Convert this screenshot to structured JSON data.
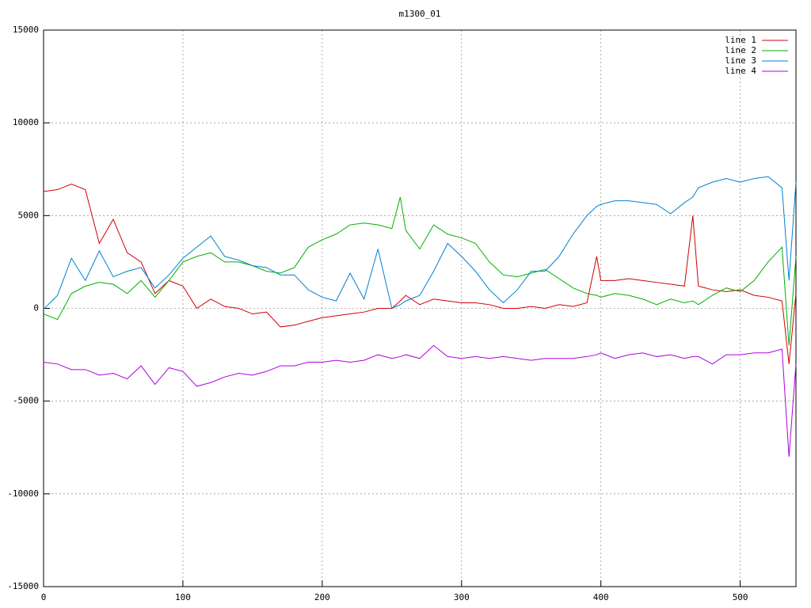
{
  "chart_data": {
    "type": "line",
    "title": "m1300_01",
    "x": [
      0,
      10,
      20,
      30,
      40,
      50,
      60,
      70,
      80,
      90,
      100,
      110,
      120,
      130,
      140,
      150,
      160,
      170,
      180,
      190,
      200,
      210,
      220,
      230,
      240,
      250,
      256,
      260,
      270,
      280,
      290,
      300,
      310,
      320,
      330,
      340,
      350,
      360,
      370,
      380,
      390,
      397,
      400,
      410,
      420,
      430,
      440,
      450,
      460,
      466,
      470,
      480,
      490,
      500,
      510,
      520,
      530,
      535,
      540
    ],
    "series": [
      {
        "name": "line 1",
        "color": "#d00000",
        "values": [
          6300,
          6400,
          6700,
          6400,
          3500,
          4800,
          3000,
          2500,
          800,
          1500,
          1200,
          0,
          500,
          100,
          0,
          -300,
          -200,
          -1000,
          -900,
          -700,
          -500,
          -400,
          -300,
          -200,
          0,
          0,
          400,
          700,
          200,
          500,
          400,
          300,
          300,
          200,
          0,
          0,
          100,
          0,
          200,
          100,
          300,
          2800,
          1500,
          1500,
          1600,
          1500,
          1400,
          1300,
          1200,
          5000,
          1200,
          1000,
          900,
          1000,
          700,
          600,
          400,
          -3000,
          800
        ]
      },
      {
        "name": "line 2",
        "color": "#00b000",
        "values": [
          -300,
          -600,
          800,
          1200,
          1400,
          1300,
          800,
          1500,
          600,
          1500,
          2500,
          2800,
          3000,
          2500,
          2500,
          2300,
          2000,
          1900,
          2200,
          3300,
          3700,
          4000,
          4500,
          4600,
          4500,
          4300,
          6000,
          4200,
          3200,
          4500,
          4000,
          3800,
          3500,
          2500,
          1800,
          1700,
          1900,
          2100,
          1600,
          1100,
          800,
          700,
          600,
          800,
          700,
          500,
          200,
          500,
          300,
          400,
          200,
          700,
          1100,
          900,
          1500,
          2500,
          3300,
          -2000,
          2800
        ]
      },
      {
        "name": "line 3",
        "color": "#0080d0",
        "values": [
          -50,
          700,
          2700,
          1500,
          3100,
          1700,
          2000,
          2200,
          1100,
          1800,
          2700,
          3300,
          3900,
          2800,
          2600,
          2300,
          2200,
          1800,
          1800,
          1000,
          600,
          400,
          1900,
          500,
          3200,
          0,
          200,
          400,
          700,
          2000,
          3500,
          2800,
          2000,
          1000,
          300,
          1000,
          2000,
          2000,
          2800,
          4000,
          5000,
          5500,
          5600,
          5800,
          5800,
          5700,
          5600,
          5100,
          5700,
          6000,
          6500,
          6800,
          7000,
          6800,
          7000,
          7100,
          6500,
          1500,
          6800
        ]
      },
      {
        "name": "line 4",
        "color": "#b000e0",
        "values": [
          -2900,
          -3000,
          -3300,
          -3300,
          -3600,
          -3500,
          -3800,
          -3100,
          -4100,
          -3200,
          -3400,
          -4200,
          -4000,
          -3700,
          -3500,
          -3600,
          -3400,
          -3100,
          -3100,
          -2900,
          -2900,
          -2800,
          -2900,
          -2800,
          -2500,
          -2700,
          -2600,
          -2500,
          -2700,
          -2000,
          -2600,
          -2700,
          -2600,
          -2700,
          -2600,
          -2700,
          -2800,
          -2700,
          -2700,
          -2700,
          -2600,
          -2500,
          -2400,
          -2700,
          -2500,
          -2400,
          -2600,
          -2500,
          -2700,
          -2600,
          -2600,
          -3000,
          -2500,
          -2500,
          -2400,
          -2400,
          -2200,
          -8000,
          -3000
        ]
      }
    ],
    "xlim": [
      0,
      540
    ],
    "xticks": [
      0,
      100,
      200,
      300,
      400,
      500
    ],
    "ylim": [
      -15000,
      15000
    ],
    "yticks": [
      -15000,
      -10000,
      -5000,
      0,
      5000,
      10000,
      15000
    ],
    "grid": true,
    "legend": "upper right"
  }
}
